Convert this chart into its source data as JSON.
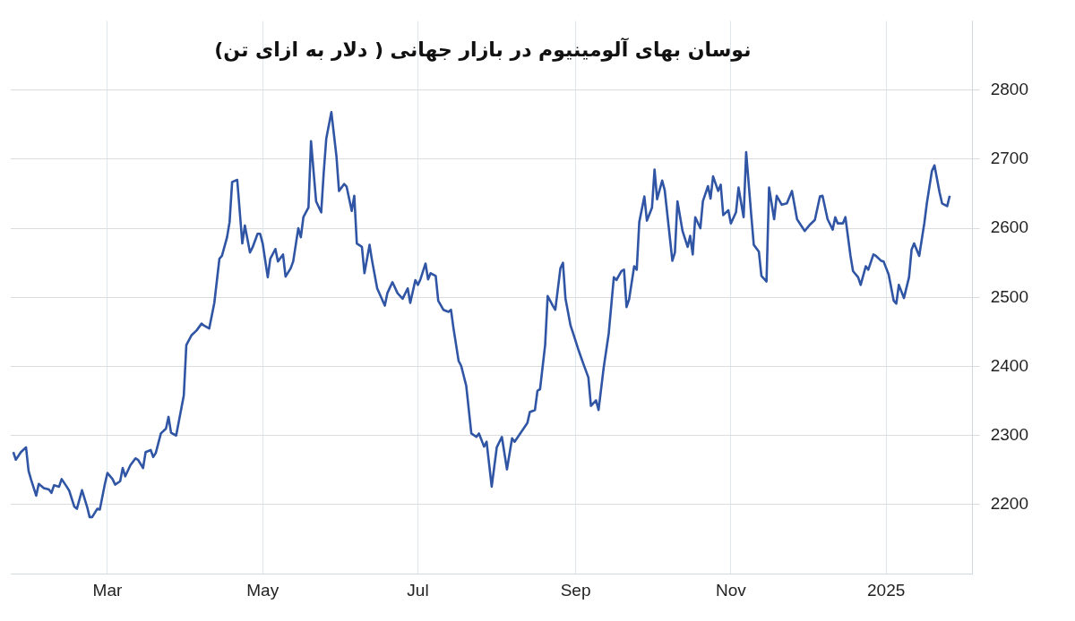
{
  "chart_data": {
    "type": "line",
    "title": "نوسان بهای آلومینیوم در بازار جهانی ( دلار به ازای تن)",
    "x": [
      "2024-01-24",
      "2024-01-25",
      "2024-01-27",
      "2024-01-29",
      "2024-01-30",
      "2024-01-31",
      "2024-02-02",
      "2024-02-03",
      "2024-02-05",
      "2024-02-07",
      "2024-02-08",
      "2024-02-09",
      "2024-02-11",
      "2024-02-12",
      "2024-02-14",
      "2024-02-15",
      "2024-02-17",
      "2024-02-18",
      "2024-02-20",
      "2024-02-22",
      "2024-02-23",
      "2024-02-24",
      "2024-02-26",
      "2024-02-27",
      "2024-02-29",
      "2024-03-01",
      "2024-03-03",
      "2024-03-04",
      "2024-03-06",
      "2024-03-07",
      "2024-03-08",
      "2024-03-10",
      "2024-03-12",
      "2024-03-13",
      "2024-03-15",
      "2024-03-16",
      "2024-03-18",
      "2024-03-19",
      "2024-03-20",
      "2024-03-22",
      "2024-03-24",
      "2024-03-25",
      "2024-03-26",
      "2024-03-28",
      "2024-03-31",
      "2024-04-01",
      "2024-04-03",
      "2024-04-05",
      "2024-04-07",
      "2024-04-08",
      "2024-04-10",
      "2024-04-12",
      "2024-04-14",
      "2024-04-15",
      "2024-04-17",
      "2024-04-18",
      "2024-04-19",
      "2024-04-21",
      "2024-04-23",
      "2024-04-24",
      "2024-04-26",
      "2024-04-27",
      "2024-04-29",
      "2024-04-30",
      "2024-05-01",
      "2024-05-03",
      "2024-05-04",
      "2024-05-06",
      "2024-05-07",
      "2024-05-09",
      "2024-05-10",
      "2024-05-12",
      "2024-05-13",
      "2024-05-15",
      "2024-05-16",
      "2024-05-17",
      "2024-05-19",
      "2024-05-20",
      "2024-05-22",
      "2024-05-24",
      "2024-05-25",
      "2024-05-26",
      "2024-05-28",
      "2024-05-30",
      "2024-05-31",
      "2024-06-02",
      "2024-06-03",
      "2024-06-05",
      "2024-06-06",
      "2024-06-07",
      "2024-06-09",
      "2024-06-10",
      "2024-06-12",
      "2024-06-13",
      "2024-06-15",
      "2024-06-18",
      "2024-06-19",
      "2024-06-21",
      "2024-06-23",
      "2024-06-25",
      "2024-06-27",
      "2024-06-28",
      "2024-06-30",
      "2024-07-01",
      "2024-07-02",
      "2024-07-04",
      "2024-07-05",
      "2024-07-06",
      "2024-07-08",
      "2024-07-09",
      "2024-07-11",
      "2024-07-13",
      "2024-07-14",
      "2024-07-15",
      "2024-07-17",
      "2024-07-18",
      "2024-07-20",
      "2024-07-22",
      "2024-07-24",
      "2024-07-25",
      "2024-07-27",
      "2024-07-28",
      "2024-07-30",
      "2024-08-01",
      "2024-08-03",
      "2024-08-05",
      "2024-08-07",
      "2024-08-08",
      "2024-08-13",
      "2024-08-14",
      "2024-08-16",
      "2024-08-17",
      "2024-08-18",
      "2024-08-20",
      "2024-08-21",
      "2024-08-23",
      "2024-08-24",
      "2024-08-26",
      "2024-08-27",
      "2024-08-28",
      "2024-08-30",
      "2024-08-31",
      "2024-09-02",
      "2024-09-04",
      "2024-09-06",
      "2024-09-07",
      "2024-09-09",
      "2024-09-10",
      "2024-09-12",
      "2024-09-14",
      "2024-09-16",
      "2024-09-17",
      "2024-09-19",
      "2024-09-20",
      "2024-09-21",
      "2024-09-22",
      "2024-09-24",
      "2024-09-25",
      "2024-09-26",
      "2024-09-28",
      "2024-09-29",
      "2024-10-01",
      "2024-10-02",
      "2024-10-03",
      "2024-10-05",
      "2024-10-06",
      "2024-10-08",
      "2024-10-09",
      "2024-10-10",
      "2024-10-11",
      "2024-10-13",
      "2024-10-15",
      "2024-10-16",
      "2024-10-17",
      "2024-10-18",
      "2024-10-20",
      "2024-10-21",
      "2024-10-23",
      "2024-10-24",
      "2024-10-25",
      "2024-10-27",
      "2024-10-28",
      "2024-10-29",
      "2024-10-31",
      "2024-11-01",
      "2024-11-03",
      "2024-11-04",
      "2024-11-06",
      "2024-11-07",
      "2024-11-09",
      "2024-11-10",
      "2024-11-12",
      "2024-11-13",
      "2024-11-15",
      "2024-11-16",
      "2024-11-18",
      "2024-11-19",
      "2024-11-21",
      "2024-11-23",
      "2024-11-25",
      "2024-11-27",
      "2024-11-30",
      "2024-12-02",
      "2024-12-04",
      "2024-12-06",
      "2024-12-07",
      "2024-12-09",
      "2024-12-11",
      "2024-12-12",
      "2024-12-13",
      "2024-12-15",
      "2024-12-16",
      "2024-12-18",
      "2024-12-19",
      "2024-12-21",
      "2024-12-22",
      "2024-12-24",
      "2024-12-25",
      "2024-12-27",
      "2024-12-28",
      "2024-12-30",
      "2024-12-31",
      "2025-01-02",
      "2025-01-04",
      "2025-01-05",
      "2025-01-06",
      "2025-01-08",
      "2025-01-10",
      "2025-01-11",
      "2025-01-12",
      "2025-01-14",
      "2025-01-16",
      "2025-01-17",
      "2025-01-19",
      "2025-01-20",
      "2025-01-22",
      "2025-01-23",
      "2025-01-25",
      "2025-01-26"
    ],
    "series": [
      {
        "color": "#2f55a4",
        "values": [
          2276,
          2265,
          2276,
          2283,
          2249,
          2236,
          2213,
          2230,
          2224,
          2222,
          2217,
          2228,
          2226,
          2237,
          2226,
          2220,
          2197,
          2194,
          2221,
          2197,
          2182,
          2182,
          2194,
          2193,
          2230,
          2246,
          2237,
          2229,
          2234,
          2253,
          2241,
          2257,
          2267,
          2265,
          2253,
          2276,
          2279,
          2269,
          2275,
          2303,
          2310,
          2327,
          2304,
          2300,
          2358,
          2431,
          2445,
          2452,
          2462,
          2459,
          2455,
          2492,
          2556,
          2560,
          2587,
          2609,
          2667,
          2670,
          2578,
          2604,
          2565,
          2572,
          2592,
          2592,
          2578,
          2529,
          2556,
          2570,
          2552,
          2562,
          2530,
          2542,
          2552,
          2600,
          2587,
          2616,
          2630,
          2726,
          2639,
          2623,
          2681,
          2730,
          2768,
          2704,
          2654,
          2664,
          2660,
          2625,
          2647,
          2578,
          2573,
          2535,
          2576,
          2553,
          2513,
          2488,
          2506,
          2522,
          2506,
          2498,
          2513,
          2492,
          2525,
          2518,
          2526,
          2549,
          2526,
          2535,
          2531,
          2495,
          2482,
          2479,
          2482,
          2455,
          2408,
          2401,
          2372,
          2303,
          2298,
          2303,
          2284,
          2291,
          2226,
          2283,
          2298,
          2251,
          2296,
          2291,
          2318,
          2334,
          2337,
          2365,
          2367,
          2431,
          2502,
          2488,
          2482,
          2542,
          2550,
          2498,
          2459,
          2448,
          2425,
          2404,
          2384,
          2343,
          2351,
          2337,
          2398,
          2448,
          2529,
          2525,
          2538,
          2540,
          2486,
          2497,
          2545,
          2540,
          2609,
          2646,
          2611,
          2630,
          2685,
          2642,
          2669,
          2655,
          2587,
          2553,
          2565,
          2639,
          2596,
          2573,
          2589,
          2562,
          2616,
          2600,
          2639,
          2661,
          2643,
          2675,
          2654,
          2663,
          2619,
          2626,
          2607,
          2623,
          2659,
          2616,
          2710,
          2619,
          2576,
          2566,
          2531,
          2523,
          2659,
          2613,
          2647,
          2634,
          2636,
          2654,
          2613,
          2596,
          2605,
          2612,
          2646,
          2647,
          2613,
          2598,
          2616,
          2607,
          2607,
          2616,
          2560,
          2538,
          2529,
          2518,
          2545,
          2540,
          2562,
          2560,
          2553,
          2552,
          2533,
          2495,
          2491,
          2518,
          2499,
          2529,
          2569,
          2578,
          2560,
          2607,
          2636,
          2683,
          2691,
          2652,
          2636,
          2632,
          2647
        ]
      }
    ],
    "xlim": [
      "2024-01-23",
      "2025-02-04"
    ],
    "xticks": [
      {
        "value": "2024-03-01",
        "label": "Mar"
      },
      {
        "value": "2024-05-01",
        "label": "May"
      },
      {
        "value": "2024-07-01",
        "label": "Jul"
      },
      {
        "value": "2024-09-01",
        "label": "Sep"
      },
      {
        "value": "2024-11-01",
        "label": "Nov"
      },
      {
        "value": "2025-01-01",
        "label": "2025"
      }
    ],
    "ylim": [
      2100,
      2900
    ],
    "yticks": [
      2200,
      2300,
      2400,
      2500,
      2600,
      2700,
      2800
    ],
    "grid": true,
    "legend": false,
    "marker": "none",
    "line_style": "solid"
  }
}
